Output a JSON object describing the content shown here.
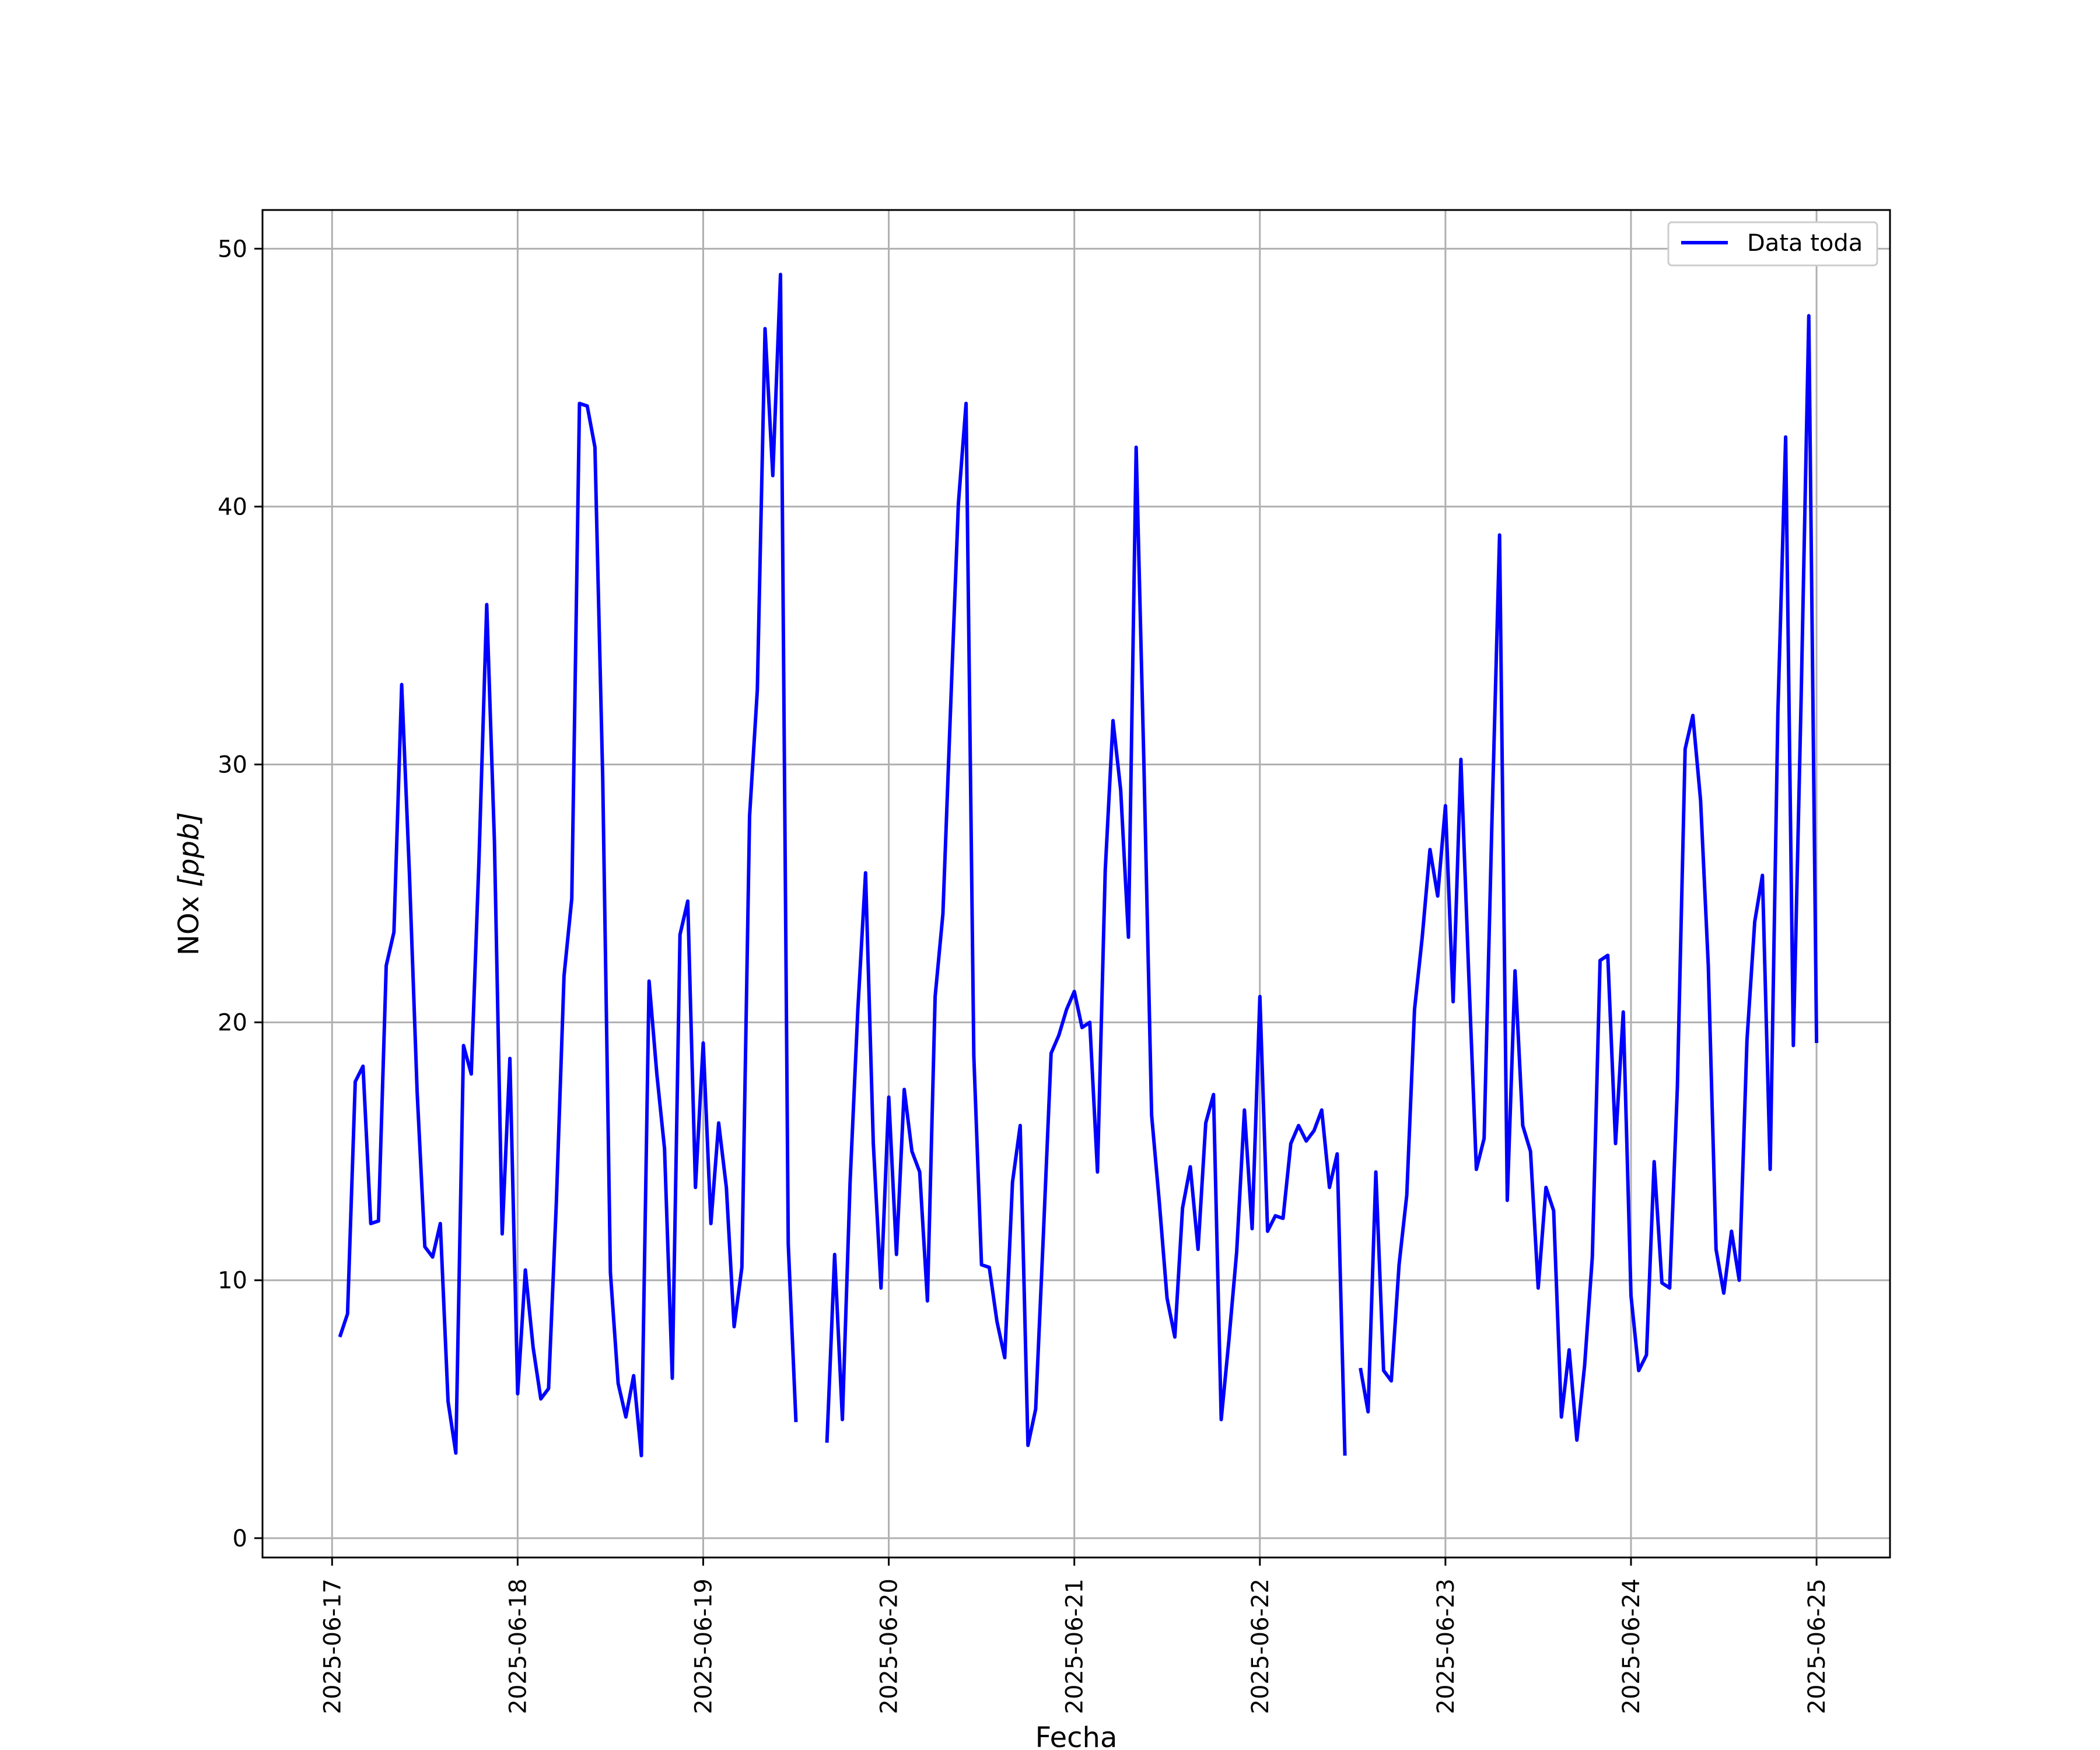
{
  "chart_data": {
    "type": "line",
    "xlabel": "Fecha",
    "ylabel_text": "NOx ",
    "ylabel_unit": "[ppb]",
    "ylim": [
      -0.75,
      51.5
    ],
    "xlim": [
      "2025-06-16T15:00",
      "2025-06-25T09:30"
    ],
    "yticks": [
      0,
      10,
      20,
      30,
      40,
      50
    ],
    "xticks": [
      "2025-06-17",
      "2025-06-18",
      "2025-06-19",
      "2025-06-20",
      "2025-06-21",
      "2025-06-22",
      "2025-06-23",
      "2025-06-24",
      "2025-06-25"
    ],
    "grid": true,
    "legend_position": "top-right",
    "series": [
      {
        "name": "Data toda",
        "color": "#0000ff",
        "points": [
          [
            "2025-06-17T01:00",
            7.8
          ],
          [
            "2025-06-17T02:00",
            8.7
          ],
          [
            "2025-06-17T03:00",
            17.7
          ],
          [
            "2025-06-17T04:00",
            18.3
          ],
          [
            "2025-06-17T05:00",
            12.2
          ],
          [
            "2025-06-17T06:00",
            12.3
          ],
          [
            "2025-06-17T07:00",
            22.2
          ],
          [
            "2025-06-17T08:00",
            23.5
          ],
          [
            "2025-06-17T09:00",
            33.1
          ],
          [
            "2025-06-17T10:00",
            25.8
          ],
          [
            "2025-06-17T11:00",
            17.3
          ],
          [
            "2025-06-17T12:00",
            11.3
          ],
          [
            "2025-06-17T13:00",
            10.9
          ],
          [
            "2025-06-17T14:00",
            12.2
          ],
          [
            "2025-06-17T15:00",
            5.3
          ],
          [
            "2025-06-17T16:00",
            3.3
          ],
          [
            "2025-06-17T17:00",
            19.1
          ],
          [
            "2025-06-17T18:00",
            18.0
          ],
          [
            "2025-06-17T19:00",
            26.3
          ],
          [
            "2025-06-17T20:00",
            36.2
          ],
          [
            "2025-06-17T21:00",
            27.0
          ],
          [
            "2025-06-17T22:00",
            11.8
          ],
          [
            "2025-06-17T23:00",
            18.6
          ],
          [
            "2025-06-18T00:00",
            5.6
          ],
          [
            "2025-06-18T01:00",
            10.4
          ],
          [
            "2025-06-18T02:00",
            7.4
          ],
          [
            "2025-06-18T03:00",
            5.4
          ],
          [
            "2025-06-18T04:00",
            5.8
          ],
          [
            "2025-06-18T05:00",
            13.0
          ],
          [
            "2025-06-18T06:00",
            21.8
          ],
          [
            "2025-06-18T07:00",
            24.8
          ],
          [
            "2025-06-18T08:00",
            44.0
          ],
          [
            "2025-06-18T09:00",
            43.9
          ],
          [
            "2025-06-18T10:00",
            42.3
          ],
          [
            "2025-06-18T11:00",
            29.5
          ],
          [
            "2025-06-18T12:00",
            10.3
          ],
          [
            "2025-06-18T13:00",
            6.0
          ],
          [
            "2025-06-18T14:00",
            4.7
          ],
          [
            "2025-06-18T15:00",
            6.3
          ],
          [
            "2025-06-18T16:00",
            3.2
          ],
          [
            "2025-06-18T17:00",
            21.6
          ],
          [
            "2025-06-18T18:00",
            18.0
          ],
          [
            "2025-06-18T19:00",
            15.1
          ],
          [
            "2025-06-18T20:00",
            6.2
          ],
          [
            "2025-06-18T21:00",
            23.4
          ],
          [
            "2025-06-18T22:00",
            24.7
          ],
          [
            "2025-06-18T23:00",
            13.6
          ],
          [
            "2025-06-19T00:00",
            19.2
          ],
          [
            "2025-06-19T01:00",
            12.2
          ],
          [
            "2025-06-19T02:00",
            16.1
          ],
          [
            "2025-06-19T03:00",
            13.6
          ],
          [
            "2025-06-19T04:00",
            8.2
          ],
          [
            "2025-06-19T05:00",
            10.5
          ],
          [
            "2025-06-19T06:00",
            28.0
          ],
          [
            "2025-06-19T07:00",
            32.9
          ],
          [
            "2025-06-19T08:00",
            46.9
          ],
          [
            "2025-06-19T09:00",
            41.2
          ],
          [
            "2025-06-19T10:00",
            49.0
          ],
          [
            "2025-06-19T11:00",
            11.4
          ],
          [
            "2025-06-19T12:00",
            4.5
          ],
          null,
          [
            "2025-06-19T16:00",
            3.7
          ],
          [
            "2025-06-19T17:00",
            11.0
          ],
          [
            "2025-06-19T18:00",
            4.6
          ],
          [
            "2025-06-19T19:00",
            13.8
          ],
          [
            "2025-06-19T20:00",
            20.5
          ],
          [
            "2025-06-19T21:00",
            25.8
          ],
          [
            "2025-06-19T22:00",
            15.3
          ],
          [
            "2025-06-19T23:00",
            9.7
          ],
          [
            "2025-06-20T00:00",
            17.1
          ],
          [
            "2025-06-20T01:00",
            11.0
          ],
          [
            "2025-06-20T02:00",
            17.4
          ],
          [
            "2025-06-20T03:00",
            15.0
          ],
          [
            "2025-06-20T04:00",
            14.2
          ],
          [
            "2025-06-20T05:00",
            9.2
          ],
          [
            "2025-06-20T06:00",
            21.0
          ],
          [
            "2025-06-20T07:00",
            24.2
          ],
          [
            "2025-06-20T08:00",
            32.2
          ],
          [
            "2025-06-20T09:00",
            40.1
          ],
          [
            "2025-06-20T10:00",
            44.0
          ],
          [
            "2025-06-20T11:00",
            18.7
          ],
          [
            "2025-06-20T12:00",
            10.6
          ],
          [
            "2025-06-20T13:00",
            10.5
          ],
          [
            "2025-06-20T14:00",
            8.4
          ],
          [
            "2025-06-20T15:00",
            7.0
          ],
          [
            "2025-06-20T16:00",
            13.8
          ],
          [
            "2025-06-20T17:00",
            16.0
          ],
          [
            "2025-06-20T18:00",
            3.6
          ],
          [
            "2025-06-20T19:00",
            5.0
          ],
          [
            "2025-06-20T20:00",
            11.8
          ],
          [
            "2025-06-20T21:00",
            18.8
          ],
          [
            "2025-06-20T22:00",
            19.5
          ],
          [
            "2025-06-20T23:00",
            20.5
          ],
          [
            "2025-06-21T00:00",
            21.2
          ],
          [
            "2025-06-21T01:00",
            19.8
          ],
          [
            "2025-06-21T02:00",
            20.0
          ],
          [
            "2025-06-21T03:00",
            14.2
          ],
          [
            "2025-06-21T04:00",
            25.9
          ],
          [
            "2025-06-21T05:00",
            31.7
          ],
          [
            "2025-06-21T06:00",
            29.0
          ],
          [
            "2025-06-21T07:00",
            23.3
          ],
          [
            "2025-06-21T08:00",
            42.3
          ],
          [
            "2025-06-21T09:00",
            30.0
          ],
          [
            "2025-06-21T10:00",
            16.4
          ],
          [
            "2025-06-21T11:00",
            13.0
          ],
          [
            "2025-06-21T12:00",
            9.3
          ],
          [
            "2025-06-21T13:00",
            7.8
          ],
          [
            "2025-06-21T14:00",
            12.8
          ],
          [
            "2025-06-21T15:00",
            14.4
          ],
          [
            "2025-06-21T16:00",
            11.2
          ],
          [
            "2025-06-21T17:00",
            16.1
          ],
          [
            "2025-06-21T18:00",
            17.2
          ],
          [
            "2025-06-21T19:00",
            4.6
          ],
          [
            "2025-06-21T20:00",
            7.7
          ],
          [
            "2025-06-21T21:00",
            11.1
          ],
          [
            "2025-06-21T22:00",
            16.6
          ],
          [
            "2025-06-21T23:00",
            12.0
          ],
          [
            "2025-06-22T00:00",
            21.0
          ],
          [
            "2025-06-22T01:00",
            11.9
          ],
          [
            "2025-06-22T02:00",
            12.5
          ],
          [
            "2025-06-22T03:00",
            12.4
          ],
          [
            "2025-06-22T04:00",
            15.3
          ],
          [
            "2025-06-22T05:00",
            16.0
          ],
          [
            "2025-06-22T06:00",
            15.4
          ],
          [
            "2025-06-22T07:00",
            15.8
          ],
          [
            "2025-06-22T08:00",
            16.6
          ],
          [
            "2025-06-22T09:00",
            13.6
          ],
          [
            "2025-06-22T10:00",
            14.9
          ],
          [
            "2025-06-22T11:00",
            3.2
          ],
          null,
          [
            "2025-06-22T13:00",
            6.6
          ],
          [
            "2025-06-22T14:00",
            4.9
          ],
          [
            "2025-06-22T15:00",
            14.2
          ],
          [
            "2025-06-22T16:00",
            6.5
          ],
          [
            "2025-06-22T17:00",
            6.1
          ],
          [
            "2025-06-22T18:00",
            10.6
          ],
          [
            "2025-06-22T19:00",
            13.3
          ],
          [
            "2025-06-22T20:00",
            20.5
          ],
          [
            "2025-06-22T21:00",
            23.3
          ],
          [
            "2025-06-22T22:00",
            26.7
          ],
          [
            "2025-06-22T23:00",
            24.9
          ],
          [
            "2025-06-23T00:00",
            28.4
          ],
          [
            "2025-06-23T01:00",
            20.8
          ],
          [
            "2025-06-23T02:00",
            30.2
          ],
          [
            "2025-06-23T03:00",
            22.0
          ],
          [
            "2025-06-23T04:00",
            14.3
          ],
          [
            "2025-06-23T05:00",
            15.5
          ],
          [
            "2025-06-23T06:00",
            27.6
          ],
          [
            "2025-06-23T07:00",
            38.9
          ],
          [
            "2025-06-23T08:00",
            13.1
          ],
          [
            "2025-06-23T09:00",
            22.0
          ],
          [
            "2025-06-23T10:00",
            16.0
          ],
          [
            "2025-06-23T11:00",
            15.0
          ],
          [
            "2025-06-23T12:00",
            9.7
          ],
          [
            "2025-06-23T13:00",
            13.6
          ],
          [
            "2025-06-23T14:00",
            12.7
          ],
          [
            "2025-06-23T15:00",
            4.7
          ],
          [
            "2025-06-23T16:00",
            7.3
          ],
          [
            "2025-06-23T17:00",
            3.8
          ],
          [
            "2025-06-23T18:00",
            6.7
          ],
          [
            "2025-06-23T19:00",
            10.9
          ],
          [
            "2025-06-23T20:00",
            22.4
          ],
          [
            "2025-06-23T21:00",
            22.6
          ],
          [
            "2025-06-23T22:00",
            15.3
          ],
          [
            "2025-06-23T23:00",
            20.4
          ],
          [
            "2025-06-24T00:00",
            9.4
          ],
          [
            "2025-06-24T01:00",
            6.5
          ],
          [
            "2025-06-24T02:00",
            7.1
          ],
          [
            "2025-06-24T03:00",
            14.6
          ],
          [
            "2025-06-24T04:00",
            9.9
          ],
          [
            "2025-06-24T05:00",
            9.7
          ],
          [
            "2025-06-24T06:00",
            17.5
          ],
          [
            "2025-06-24T07:00",
            30.6
          ],
          [
            "2025-06-24T08:00",
            31.9
          ],
          [
            "2025-06-24T09:00",
            28.6
          ],
          [
            "2025-06-24T10:00",
            22.2
          ],
          [
            "2025-06-24T11:00",
            11.2
          ],
          [
            "2025-06-24T12:00",
            9.5
          ],
          [
            "2025-06-24T13:00",
            11.9
          ],
          [
            "2025-06-24T14:00",
            10.0
          ],
          [
            "2025-06-24T15:00",
            19.3
          ],
          [
            "2025-06-24T16:00",
            23.9
          ],
          [
            "2025-06-24T17:00",
            25.7
          ],
          [
            "2025-06-24T18:00",
            14.3
          ],
          [
            "2025-06-24T19:00",
            32.0
          ],
          [
            "2025-06-24T20:00",
            42.7
          ],
          [
            "2025-06-24T21:00",
            19.1
          ],
          [
            "2025-06-24T22:00",
            32.5
          ],
          [
            "2025-06-24T23:00",
            47.4
          ],
          [
            "2025-06-25T00:00",
            19.2
          ]
        ]
      }
    ]
  }
}
